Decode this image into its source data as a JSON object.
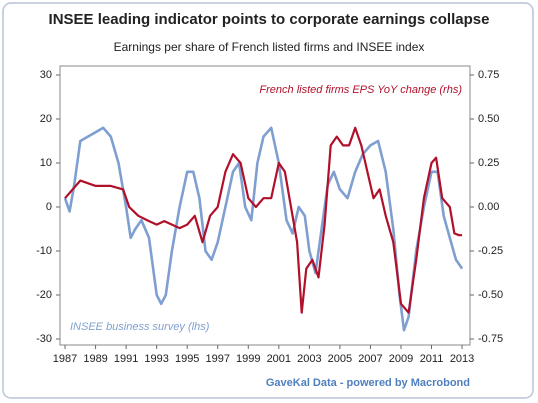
{
  "chart_data": {
    "type": "line",
    "title": "INSEE leading indicator points to corporate earnings collapse",
    "subtitle": "Earnings per share of French listed firms and INSEE index",
    "source": "GaveKal Data - powered by Macrobond",
    "xlim": [
      1986.67,
      2013.52
    ],
    "xticks": [
      1987,
      1989,
      1991,
      1993,
      1995,
      1997,
      1999,
      2001,
      2003,
      2005,
      2007,
      2009,
      2011,
      2013
    ],
    "ylim": [
      -30,
      30
    ],
    "yticks": [
      -30,
      -20,
      -10,
      0,
      10,
      20,
      30
    ],
    "y2lim": [
      -0.75,
      0.75
    ],
    "y2ticks": [
      {
        "value": -0.75,
        "label": "-0.75"
      },
      {
        "value": -0.5,
        "label": "-0.50"
      },
      {
        "value": -0.25,
        "label": "-0.25"
      },
      {
        "value": 0,
        "label": "0.00"
      },
      {
        "value": 0.25,
        "label": "0.25"
      },
      {
        "value": 0.5,
        "label": "0.50"
      },
      {
        "value": 0.75,
        "label": "0.75"
      }
    ],
    "grid": false,
    "series": [
      {
        "name": "INSEE business survey (lhs)",
        "color": "#7f9fd0",
        "x": [
          1987.0,
          1987.3,
          1987.6,
          1988.0,
          1988.5,
          1989.0,
          1989.5,
          1990.0,
          1990.5,
          1991.0,
          1991.3,
          1991.6,
          1992.0,
          1992.5,
          1993.0,
          1993.3,
          1993.6,
          1994.0,
          1994.5,
          1995.0,
          1995.4,
          1995.8,
          1996.2,
          1996.6,
          1997.0,
          1997.5,
          1998.0,
          1998.4,
          1998.8,
          1999.2,
          1999.6,
          2000.0,
          2000.5,
          2001.0,
          2001.5,
          2001.9,
          2002.3,
          2002.7,
          2003.0,
          2003.4,
          2003.8,
          2004.2,
          2004.6,
          2005.0,
          2005.5,
          2006.0,
          2006.5,
          2007.0,
          2007.5,
          2008.0,
          2008.5,
          2008.9,
          2009.2,
          2009.5,
          2010.0,
          2010.5,
          2011.0,
          2011.4,
          2011.8,
          2012.2,
          2012.6,
          2013.0
        ],
        "values": [
          2,
          -1,
          5,
          15,
          16,
          17,
          18,
          16,
          10,
          0,
          -7,
          -5,
          -3,
          -7,
          -20,
          -22,
          -20,
          -10,
          0,
          8,
          8,
          2,
          -10,
          -12,
          -8,
          0,
          8,
          10,
          0,
          -3,
          10,
          16,
          18,
          10,
          -3,
          -6,
          0,
          -2,
          -10,
          -15,
          -5,
          5,
          8,
          4,
          2,
          8,
          12,
          14,
          15,
          8,
          -5,
          -20,
          -28,
          -25,
          -10,
          0,
          8,
          8,
          -2,
          -7,
          -12,
          -14
        ]
      },
      {
        "name": "French listed firms EPS YoY change (rhs)",
        "color": "#b0102a",
        "axis": "y2",
        "x": [
          1987.0,
          1988.0,
          1989.0,
          1990.0,
          1990.8,
          1991.2,
          1991.8,
          1992.5,
          1993.0,
          1993.5,
          1994.0,
          1994.5,
          1995.0,
          1995.5,
          1996.0,
          1996.5,
          1997.0,
          1997.5,
          1998.0,
          1998.5,
          1999.0,
          1999.5,
          2000.0,
          2000.5,
          2001.0,
          2001.4,
          2001.8,
          2002.2,
          2002.5,
          2002.8,
          2003.2,
          2003.6,
          2004.0,
          2004.4,
          2004.8,
          2005.2,
          2005.6,
          2006.0,
          2006.4,
          2006.8,
          2007.2,
          2007.6,
          2008.0,
          2008.5,
          2009.0,
          2009.5,
          2010.0,
          2010.5,
          2011.0,
          2011.3,
          2011.7,
          2012.2,
          2012.5,
          2012.8,
          2013.0
        ],
        "values": [
          0.05,
          0.15,
          0.12,
          0.12,
          0.1,
          0.0,
          -0.05,
          -0.08,
          -0.1,
          -0.08,
          -0.1,
          -0.12,
          -0.1,
          -0.05,
          -0.2,
          -0.05,
          0.0,
          0.2,
          0.3,
          0.25,
          0.05,
          0.0,
          0.05,
          0.05,
          0.25,
          0.2,
          0.0,
          -0.2,
          -0.6,
          -0.35,
          -0.3,
          -0.4,
          -0.1,
          0.35,
          0.4,
          0.35,
          0.35,
          0.45,
          0.35,
          0.2,
          0.05,
          0.1,
          -0.05,
          -0.2,
          -0.55,
          -0.6,
          -0.3,
          0.05,
          0.25,
          0.28,
          0.05,
          0.0,
          -0.15,
          -0.16,
          -0.16
        ]
      }
    ]
  }
}
